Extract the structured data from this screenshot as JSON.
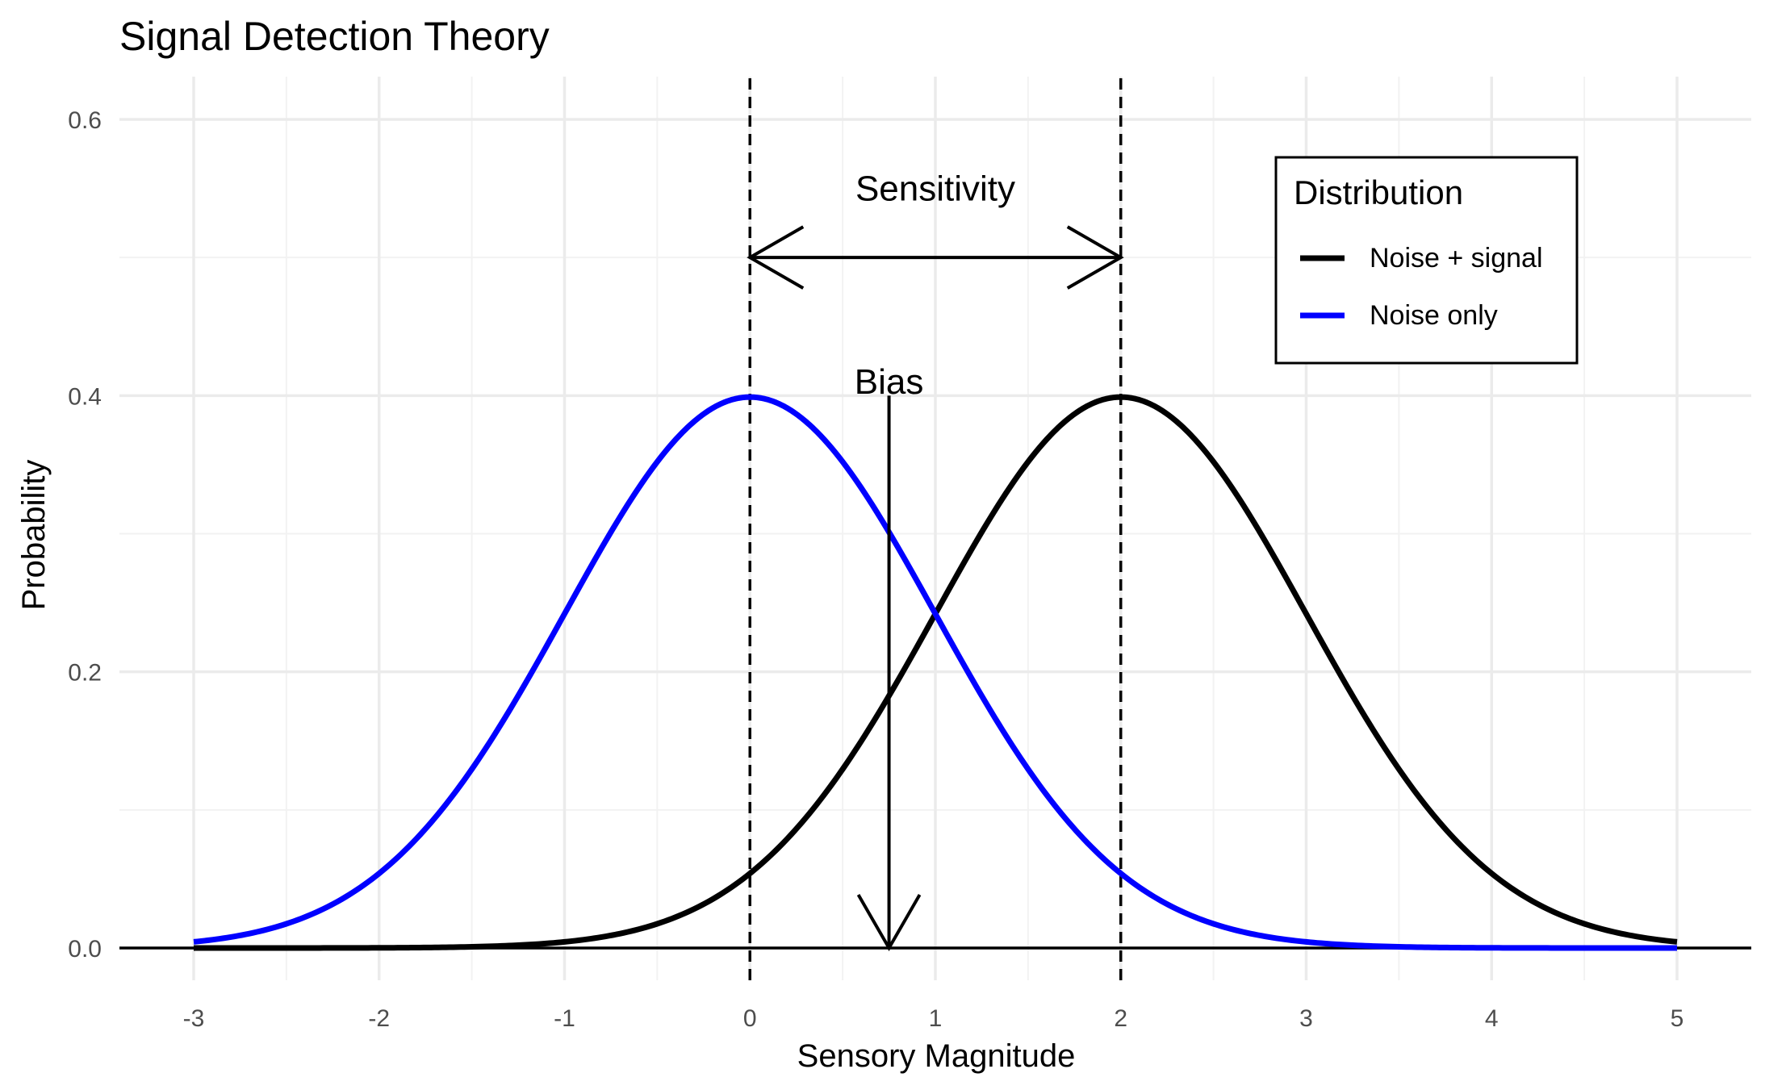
{
  "chart_data": {
    "type": "line",
    "title": "Signal Detection Theory",
    "xlabel": "Sensory Magnitude",
    "ylabel": "Probability",
    "xlim": [
      -3,
      5
    ],
    "ylim": [
      0,
      0.6
    ],
    "x_ticks": [
      -3,
      -2,
      -1,
      0,
      1,
      2,
      3,
      4,
      5
    ],
    "y_ticks": [
      0.0,
      0.2,
      0.4,
      0.6
    ],
    "y_tick_labels": [
      "0.0",
      "0.2",
      "0.4",
      "0.6"
    ],
    "grid": true,
    "legend": {
      "title": "Distribution",
      "position": "top-right",
      "entries": [
        "Noise + signal",
        "Noise only"
      ]
    },
    "series": [
      {
        "name": "Noise + signal",
        "color": "#000000",
        "x": [
          -3.0,
          -2.5,
          -2.0,
          -1.5,
          -1.0,
          -0.5,
          0.0,
          0.25,
          0.5,
          0.75,
          1.0,
          1.25,
          1.5,
          1.75,
          2.0,
          2.25,
          2.5,
          2.75,
          3.0,
          3.5,
          4.0,
          4.5,
          5.0
        ],
        "y": [
          0.0,
          0.0,
          0.0001,
          0.0009,
          0.0044,
          0.0175,
          0.054,
          0.0863,
          0.1295,
          0.1826,
          0.242,
          0.3011,
          0.3521,
          0.3867,
          0.3989,
          0.3867,
          0.3521,
          0.3011,
          0.242,
          0.1295,
          0.054,
          0.0175,
          0.0044
        ]
      },
      {
        "name": "Noise only",
        "color": "#0000ff",
        "x": [
          -3.0,
          -2.5,
          -2.0,
          -1.5,
          -1.0,
          -0.75,
          -0.5,
          -0.25,
          0.0,
          0.25,
          0.5,
          0.75,
          1.0,
          1.5,
          2.0,
          2.5,
          3.0,
          3.5,
          4.0,
          4.5,
          5.0
        ],
        "y": [
          0.0044,
          0.0175,
          0.054,
          0.1295,
          0.242,
          0.3011,
          0.3521,
          0.3867,
          0.3989,
          0.3867,
          0.3521,
          0.3011,
          0.242,
          0.1295,
          0.054,
          0.0175,
          0.0044,
          0.0009,
          0.0001,
          0.0,
          0.0
        ]
      }
    ],
    "reference_lines": {
      "vertical_dashed_x": [
        0,
        2
      ],
      "horizontal_solid_y": 0
    },
    "annotations": [
      {
        "text": "Sensitivity",
        "type": "double-arrow",
        "x_from": 0,
        "x_to": 2,
        "y": 0.5,
        "label_y": 0.55
      },
      {
        "text": "Bias",
        "type": "arrow-down",
        "x": 0.75,
        "y_from": 0.4,
        "y_to": 0.0,
        "label_y": 0.41
      }
    ]
  }
}
